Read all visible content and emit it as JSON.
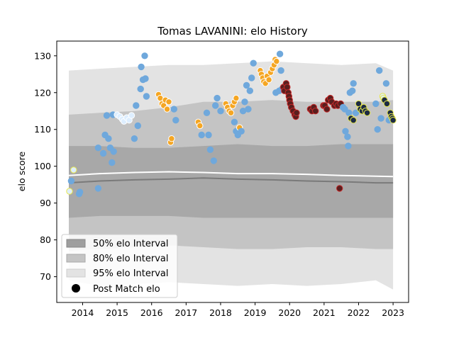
{
  "chart_data": {
    "type": "scatter",
    "title": "Tomas LAVANINI: elo History",
    "xlabel": "",
    "ylabel": "elo score",
    "xlim": [
      2013.25,
      2023.45
    ],
    "ylim": [
      63,
      134
    ],
    "xticks": [
      2014,
      2015,
      2016,
      2017,
      2018,
      2019,
      2020,
      2021,
      2022,
      2023
    ],
    "yticks": [
      70,
      80,
      90,
      100,
      110,
      120,
      130
    ],
    "grid": false,
    "legend": {
      "placement": "lower-left",
      "entries": [
        {
          "label": "50% elo Interval",
          "color": "#9e9e9e"
        },
        {
          "label": "80% elo Interval",
          "color": "#c4c4c4"
        },
        {
          "label": "95% elo Interval",
          "color": "#e3e3e3"
        },
        {
          "label": "Post Match elo",
          "color": "#000000"
        }
      ]
    },
    "colors": {
      "blue": "#6fa8dc",
      "orange": "#f5a623",
      "lightblue": "#ddeeff",
      "darkred": "#5a1e1e",
      "navy": "#1c2a44",
      "yellow": "#e8e84a",
      "band95": "#e3e3e3",
      "band80": "#c4c4c4",
      "band50": "#a8a8a8",
      "median": "#7a7a7a",
      "mean": "#ffffff"
    },
    "bands": {
      "x": [
        2013.6,
        2014.5,
        2015.5,
        2016.5,
        2017.5,
        2018.5,
        2019.5,
        2020.5,
        2021.5,
        2022.5,
        2023.0
      ],
      "p95_upper": [
        126,
        126.5,
        127,
        127.5,
        127.5,
        128,
        128.5,
        128,
        127.5,
        128,
        126
      ],
      "p95_lower": [
        69,
        67.5,
        68,
        68.5,
        68,
        67.5,
        68,
        67.5,
        68,
        69,
        66.5
      ],
      "p80_upper": [
        114,
        114.5,
        115,
        116,
        117.5,
        117.5,
        118,
        117.5,
        117.5,
        117.5,
        118
      ],
      "p80_lower": [
        77,
        77.5,
        78,
        78.5,
        78,
        77.5,
        77.5,
        78,
        78,
        77.5,
        77.5
      ],
      "p50_upper": [
        105.5,
        105.5,
        105,
        105,
        105.5,
        106,
        105.5,
        105.5,
        106,
        106,
        106
      ],
      "p50_lower": [
        86,
        86.5,
        86.5,
        86.5,
        86,
        86,
        86,
        86,
        86,
        86,
        86
      ],
      "median": [
        95.5,
        96,
        96.3,
        96.5,
        96.8,
        96.5,
        96.3,
        96,
        95.8,
        95.5,
        95.5
      ],
      "mean": [
        97.5,
        98,
        98.3,
        98.5,
        98.3,
        98,
        98,
        97.8,
        97.5,
        97.3,
        97.2
      ]
    },
    "series": [
      {
        "name": "Post Match elo",
        "points": [
          {
            "x": 2013.62,
            "y": 93.2,
            "c": "yellow"
          },
          {
            "x": 2013.67,
            "y": 96,
            "c": "blue"
          },
          {
            "x": 2013.74,
            "y": 99,
            "c": "yellow"
          },
          {
            "x": 2013.9,
            "y": 92.5,
            "c": "blue"
          },
          {
            "x": 2013.92,
            "y": 93,
            "c": "blue"
          },
          {
            "x": 2014.45,
            "y": 94,
            "c": "blue"
          },
          {
            "x": 2014.45,
            "y": 105,
            "c": "blue"
          },
          {
            "x": 2014.6,
            "y": 103.5,
            "c": "blue"
          },
          {
            "x": 2014.65,
            "y": 108.5,
            "c": "blue"
          },
          {
            "x": 2014.7,
            "y": 113.8,
            "c": "blue"
          },
          {
            "x": 2014.75,
            "y": 107.5,
            "c": "blue"
          },
          {
            "x": 2014.8,
            "y": 105,
            "c": "blue"
          },
          {
            "x": 2014.85,
            "y": 101,
            "c": "blue"
          },
          {
            "x": 2014.9,
            "y": 104,
            "c": "blue"
          },
          {
            "x": 2014.88,
            "y": 114,
            "c": "blue"
          },
          {
            "x": 2015.0,
            "y": 114,
            "c": "lightblue"
          },
          {
            "x": 2015.08,
            "y": 113.5,
            "c": "lightblue"
          },
          {
            "x": 2015.15,
            "y": 112.8,
            "c": "lightblue"
          },
          {
            "x": 2015.2,
            "y": 112.2,
            "c": "lightblue"
          },
          {
            "x": 2015.28,
            "y": 113.2,
            "c": "lightblue"
          },
          {
            "x": 2015.35,
            "y": 112.5,
            "c": "lightblue"
          },
          {
            "x": 2015.42,
            "y": 113.8,
            "c": "lightblue"
          },
          {
            "x": 2015.5,
            "y": 107.5,
            "c": "blue"
          },
          {
            "x": 2015.55,
            "y": 116.5,
            "c": "blue"
          },
          {
            "x": 2015.6,
            "y": 111,
            "c": "blue"
          },
          {
            "x": 2015.68,
            "y": 121,
            "c": "blue"
          },
          {
            "x": 2015.7,
            "y": 127,
            "c": "blue"
          },
          {
            "x": 2015.75,
            "y": 123.5,
            "c": "blue"
          },
          {
            "x": 2015.8,
            "y": 130,
            "c": "blue"
          },
          {
            "x": 2015.82,
            "y": 123.8,
            "c": "blue"
          },
          {
            "x": 2015.85,
            "y": 119,
            "c": "blue"
          },
          {
            "x": 2016.2,
            "y": 119.5,
            "c": "orange"
          },
          {
            "x": 2016.25,
            "y": 118.5,
            "c": "orange"
          },
          {
            "x": 2016.3,
            "y": 117,
            "c": "orange"
          },
          {
            "x": 2016.35,
            "y": 116.5,
            "c": "orange"
          },
          {
            "x": 2016.4,
            "y": 118,
            "c": "orange"
          },
          {
            "x": 2016.45,
            "y": 115.5,
            "c": "orange"
          },
          {
            "x": 2016.5,
            "y": 117.5,
            "c": "orange"
          },
          {
            "x": 2016.55,
            "y": 106.5,
            "c": "orange"
          },
          {
            "x": 2016.58,
            "y": 107.5,
            "c": "orange"
          },
          {
            "x": 2016.65,
            "y": 115.5,
            "c": "blue"
          },
          {
            "x": 2016.7,
            "y": 112.5,
            "c": "blue"
          },
          {
            "x": 2017.35,
            "y": 112,
            "c": "orange"
          },
          {
            "x": 2017.4,
            "y": 111,
            "c": "orange"
          },
          {
            "x": 2017.45,
            "y": 108.5,
            "c": "blue"
          },
          {
            "x": 2017.6,
            "y": 114.5,
            "c": "blue"
          },
          {
            "x": 2017.65,
            "y": 108.5,
            "c": "blue"
          },
          {
            "x": 2017.7,
            "y": 104.5,
            "c": "blue"
          },
          {
            "x": 2017.8,
            "y": 101.5,
            "c": "blue"
          },
          {
            "x": 2017.85,
            "y": 116.5,
            "c": "blue"
          },
          {
            "x": 2017.9,
            "y": 118.5,
            "c": "blue"
          },
          {
            "x": 2018.0,
            "y": 115,
            "c": "blue"
          },
          {
            "x": 2018.15,
            "y": 117,
            "c": "orange"
          },
          {
            "x": 2018.2,
            "y": 116,
            "c": "orange"
          },
          {
            "x": 2018.25,
            "y": 115,
            "c": "orange"
          },
          {
            "x": 2018.3,
            "y": 114.5,
            "c": "orange"
          },
          {
            "x": 2018.35,
            "y": 116.5,
            "c": "orange"
          },
          {
            "x": 2018.4,
            "y": 117.5,
            "c": "orange"
          },
          {
            "x": 2018.45,
            "y": 118.5,
            "c": "orange"
          },
          {
            "x": 2018.4,
            "y": 112,
            "c": "blue"
          },
          {
            "x": 2018.45,
            "y": 109.5,
            "c": "blue"
          },
          {
            "x": 2018.5,
            "y": 108.5,
            "c": "blue"
          },
          {
            "x": 2018.55,
            "y": 110.5,
            "c": "orange"
          },
          {
            "x": 2018.6,
            "y": 109.5,
            "c": "blue"
          },
          {
            "x": 2018.65,
            "y": 115,
            "c": "blue"
          },
          {
            "x": 2018.7,
            "y": 117.5,
            "c": "blue"
          },
          {
            "x": 2018.75,
            "y": 122,
            "c": "blue"
          },
          {
            "x": 2018.8,
            "y": 115.5,
            "c": "blue"
          },
          {
            "x": 2018.85,
            "y": 120.5,
            "c": "blue"
          },
          {
            "x": 2018.9,
            "y": 124,
            "c": "blue"
          },
          {
            "x": 2018.95,
            "y": 128,
            "c": "blue"
          },
          {
            "x": 2019.15,
            "y": 126,
            "c": "orange"
          },
          {
            "x": 2019.18,
            "y": 125,
            "c": "orange"
          },
          {
            "x": 2019.22,
            "y": 124,
            "c": "orange"
          },
          {
            "x": 2019.25,
            "y": 123,
            "c": "orange"
          },
          {
            "x": 2019.3,
            "y": 122.5,
            "c": "orange"
          },
          {
            "x": 2019.35,
            "y": 124.5,
            "c": "orange"
          },
          {
            "x": 2019.4,
            "y": 123.5,
            "c": "orange"
          },
          {
            "x": 2019.45,
            "y": 125.5,
            "c": "orange"
          },
          {
            "x": 2019.5,
            "y": 126.5,
            "c": "orange"
          },
          {
            "x": 2019.55,
            "y": 127.5,
            "c": "orange"
          },
          {
            "x": 2019.58,
            "y": 129,
            "c": "orange"
          },
          {
            "x": 2019.62,
            "y": 128.5,
            "c": "orange"
          },
          {
            "x": 2019.6,
            "y": 120,
            "c": "blue"
          },
          {
            "x": 2019.7,
            "y": 120.5,
            "c": "blue"
          },
          {
            "x": 2019.75,
            "y": 126,
            "c": "blue"
          },
          {
            "x": 2019.72,
            "y": 130.5,
            "c": "blue"
          },
          {
            "x": 2019.78,
            "y": 121,
            "c": "blue"
          },
          {
            "x": 2019.82,
            "y": 121.5,
            "c": "darkred"
          },
          {
            "x": 2019.85,
            "y": 120.5,
            "c": "darkred"
          },
          {
            "x": 2019.9,
            "y": 122.5,
            "c": "darkred"
          },
          {
            "x": 2019.93,
            "y": 121.5,
            "c": "darkred"
          },
          {
            "x": 2019.96,
            "y": 120,
            "c": "darkred"
          },
          {
            "x": 2019.98,
            "y": 119,
            "c": "darkred"
          },
          {
            "x": 2020.0,
            "y": 118,
            "c": "darkred"
          },
          {
            "x": 2020.02,
            "y": 117,
            "c": "darkred"
          },
          {
            "x": 2020.05,
            "y": 116,
            "c": "darkred"
          },
          {
            "x": 2020.1,
            "y": 115,
            "c": "darkred"
          },
          {
            "x": 2020.15,
            "y": 114,
            "c": "darkred"
          },
          {
            "x": 2020.18,
            "y": 113.5,
            "c": "darkred"
          },
          {
            "x": 2020.2,
            "y": 114.5,
            "c": "darkred"
          },
          {
            "x": 2020.6,
            "y": 115.5,
            "c": "darkred"
          },
          {
            "x": 2020.65,
            "y": 115,
            "c": "darkred"
          },
          {
            "x": 2020.7,
            "y": 116,
            "c": "darkred"
          },
          {
            "x": 2020.75,
            "y": 115,
            "c": "darkred"
          },
          {
            "x": 2020.98,
            "y": 116.5,
            "c": "darkred"
          },
          {
            "x": 2021.02,
            "y": 116.5,
            "c": "darkred"
          },
          {
            "x": 2021.08,
            "y": 115.5,
            "c": "darkred"
          },
          {
            "x": 2021.12,
            "y": 118,
            "c": "darkred"
          },
          {
            "x": 2021.18,
            "y": 118.5,
            "c": "darkred"
          },
          {
            "x": 2021.22,
            "y": 117.5,
            "c": "darkred"
          },
          {
            "x": 2021.3,
            "y": 116.5,
            "c": "darkred"
          },
          {
            "x": 2021.35,
            "y": 117,
            "c": "darkred"
          },
          {
            "x": 2021.4,
            "y": 116.5,
            "c": "darkred"
          },
          {
            "x": 2021.45,
            "y": 94,
            "c": "darkred"
          },
          {
            "x": 2021.48,
            "y": 117,
            "c": "darkred"
          },
          {
            "x": 2021.55,
            "y": 116,
            "c": "blue"
          },
          {
            "x": 2021.6,
            "y": 115.5,
            "c": "blue"
          },
          {
            "x": 2021.62,
            "y": 109.5,
            "c": "blue"
          },
          {
            "x": 2021.68,
            "y": 108,
            "c": "blue"
          },
          {
            "x": 2021.7,
            "y": 105.5,
            "c": "blue"
          },
          {
            "x": 2021.72,
            "y": 114.5,
            "c": "blue"
          },
          {
            "x": 2021.75,
            "y": 120,
            "c": "blue"
          },
          {
            "x": 2021.78,
            "y": 113,
            "c": "navy"
          },
          {
            "x": 2021.82,
            "y": 120.5,
            "c": "blue"
          },
          {
            "x": 2021.85,
            "y": 122.5,
            "c": "blue"
          },
          {
            "x": 2021.85,
            "y": 112.5,
            "c": "navy"
          },
          {
            "x": 2021.92,
            "y": 114.5,
            "c": "blue"
          },
          {
            "x": 2022.0,
            "y": 117,
            "c": "navy"
          },
          {
            "x": 2022.05,
            "y": 115.5,
            "c": "navy"
          },
          {
            "x": 2022.1,
            "y": 115,
            "c": "navy"
          },
          {
            "x": 2022.15,
            "y": 116,
            "c": "navy"
          },
          {
            "x": 2022.2,
            "y": 115,
            "c": "navy"
          },
          {
            "x": 2022.25,
            "y": 114.5,
            "c": "navy"
          },
          {
            "x": 2022.5,
            "y": 117,
            "c": "blue"
          },
          {
            "x": 2022.55,
            "y": 110,
            "c": "blue"
          },
          {
            "x": 2022.6,
            "y": 126,
            "c": "blue"
          },
          {
            "x": 2022.65,
            "y": 113,
            "c": "blue"
          },
          {
            "x": 2022.7,
            "y": 119,
            "c": "yellow"
          },
          {
            "x": 2022.72,
            "y": 118.5,
            "c": "yellow"
          },
          {
            "x": 2022.75,
            "y": 118,
            "c": "navy"
          },
          {
            "x": 2022.8,
            "y": 122.5,
            "c": "blue"
          },
          {
            "x": 2022.82,
            "y": 117,
            "c": "navy"
          },
          {
            "x": 2022.88,
            "y": 112.5,
            "c": "blue"
          },
          {
            "x": 2022.92,
            "y": 114.5,
            "c": "navy"
          },
          {
            "x": 2022.95,
            "y": 113.5,
            "c": "navy"
          },
          {
            "x": 2022.98,
            "y": 113,
            "c": "navy"
          },
          {
            "x": 2023.0,
            "y": 112.5,
            "c": "navy"
          }
        ]
      }
    ]
  }
}
